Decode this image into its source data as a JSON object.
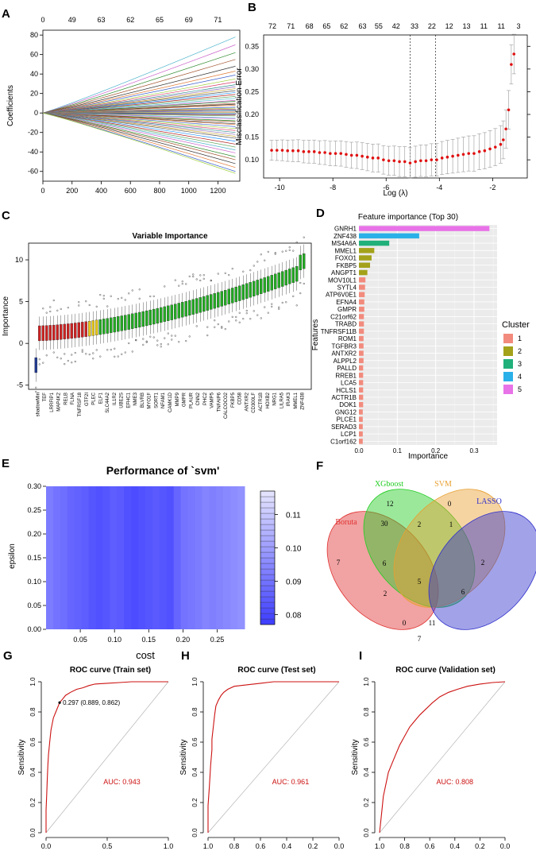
{
  "panel_labels": [
    "A",
    "B",
    "C",
    "D",
    "E",
    "F",
    "G",
    "H",
    "I"
  ],
  "chart_data": [
    {
      "id": "A",
      "type": "line",
      "xlabel": "",
      "ylabel": "Coefficients",
      "xlim": [
        0,
        1350
      ],
      "ylim": [
        -70,
        85
      ],
      "x_ticks": [
        0,
        200,
        400,
        600,
        800,
        1000,
        1200
      ],
      "y_ticks": [
        -60,
        -40,
        -20,
        0,
        20,
        40,
        60,
        80
      ],
      "top_ticks": [
        {
          "x": 0,
          "label": "0"
        },
        {
          "x": 200,
          "label": "49"
        },
        {
          "x": 400,
          "label": "63"
        },
        {
          "x": 600,
          "label": "62"
        },
        {
          "x": 800,
          "label": "65"
        },
        {
          "x": 1000,
          "label": "69"
        },
        {
          "x": 1200,
          "label": "71"
        }
      ],
      "series_end_values": [
        78,
        70,
        62,
        55,
        48,
        43,
        39,
        35,
        32,
        29,
        27,
        25,
        23,
        21,
        19,
        17,
        15,
        13,
        12,
        10,
        9,
        8,
        6,
        5,
        4,
        3,
        2,
        1,
        0,
        -1,
        -2,
        -3,
        -5,
        -6,
        -8,
        -9,
        -11,
        -12,
        -14,
        -16,
        -18,
        -20,
        -22,
        -24,
        -26,
        -29,
        -32,
        -35,
        -38,
        -41,
        -45,
        -48,
        -52,
        -56,
        -60,
        -62
      ],
      "series_colors": [
        "#4db3cc",
        "#cc66cc",
        "#2d8a2d",
        "#a0522d",
        "#333333",
        "#e07b39",
        "#3a5fcd",
        "#9acd32",
        "#d63a6a",
        "#2e8b8b",
        "#8b6bb8",
        "#c7a228",
        "#555555",
        "#1e90ff",
        "#b22222",
        "#66aa66"
      ]
    },
    {
      "id": "B",
      "type": "scatter",
      "xlabel": "Log (λ)",
      "ylabel": "Misclassification Error",
      "xlim": [
        -10.6,
        -0.7
      ],
      "ylim": [
        0.06,
        0.375
      ],
      "x_ticks": [
        -10,
        -8,
        -6,
        -4,
        -2
      ],
      "y_ticks": [
        0.1,
        0.15,
        0.2,
        0.25,
        0.3,
        0.35
      ],
      "top_ticks": [
        {
          "x": -10.3,
          "label": "72"
        },
        {
          "x": -9.5,
          "label": "71"
        },
        {
          "x": -8.7,
          "label": "68"
        },
        {
          "x": -7.95,
          "label": "65"
        },
        {
          "x": -7.2,
          "label": "62"
        },
        {
          "x": -6.4,
          "label": "63"
        },
        {
          "x": -5.7,
          "label": "55"
        },
        {
          "x": -4.95,
          "label": "42"
        },
        {
          "x": -4.15,
          "label": "33"
        },
        {
          "x": -3.4,
          "label": "22"
        },
        {
          "x": -2.65,
          "label": "12"
        },
        {
          "x": -1.9,
          "label": "13"
        },
        {
          "x": -1.15,
          "label": "11"
        },
        {
          "x": -0.4,
          "label": "11"
        },
        {
          "x": 0.35,
          "label": "3"
        }
      ],
      "vlines": [
        -5.1,
        -4.15
      ],
      "x": [
        -10.3,
        -10.1,
        -9.9,
        -9.7,
        -9.5,
        -9.3,
        -9.1,
        -8.9,
        -8.7,
        -8.5,
        -8.3,
        -8.1,
        -7.9,
        -7.7,
        -7.5,
        -7.3,
        -7.1,
        -6.9,
        -6.7,
        -6.5,
        -6.3,
        -6.1,
        -5.9,
        -5.7,
        -5.5,
        -5.3,
        -5.1,
        -4.9,
        -4.7,
        -4.5,
        -4.3,
        -4.1,
        -3.9,
        -3.7,
        -3.5,
        -3.3,
        -3.1,
        -2.9,
        -2.7,
        -2.5,
        -2.3,
        -2.1,
        -1.9,
        -1.7,
        -1.6,
        -1.5,
        -1.4,
        -1.3,
        -1.2
      ],
      "y": [
        0.121,
        0.121,
        0.121,
        0.12,
        0.12,
        0.12,
        0.118,
        0.118,
        0.118,
        0.116,
        0.116,
        0.114,
        0.114,
        0.114,
        0.112,
        0.11,
        0.11,
        0.108,
        0.106,
        0.104,
        0.104,
        0.1,
        0.098,
        0.098,
        0.096,
        0.096,
        0.093,
        0.096,
        0.098,
        0.098,
        0.1,
        0.1,
        0.104,
        0.106,
        0.108,
        0.11,
        0.112,
        0.114,
        0.114,
        0.118,
        0.12,
        0.124,
        0.128,
        0.134,
        0.144,
        0.168,
        0.21,
        0.31,
        0.333
      ],
      "error": 0.022
    },
    {
      "id": "C",
      "type": "box",
      "title": "Variable Importance",
      "xlabel": "",
      "ylabel": "Importance",
      "ylim": [
        -5.5,
        12
      ],
      "y_ticks": [
        -5,
        0,
        5,
        10
      ],
      "n_features": 76,
      "labels": [
        "shadowMin",
        "TEF",
        "LRRFIP1",
        "MAP4K2",
        "RELB",
        "FLNA",
        "TNFRSF18",
        "GTF2I",
        "PLEC",
        "ELF1",
        "SLC44A2",
        "IL1R2",
        "UBE2S",
        "EFHC1",
        "NME3",
        "BLVRB",
        "MYO1F",
        "SORT1",
        "NFAM1",
        "CAMK1D",
        "MMP9",
        "GMPR",
        "PLAUR",
        "CNN2",
        "PHC2",
        "VAMP5",
        "TNFAIP6",
        "CALCOCO2",
        "FKBP5",
        "CD58",
        "ANTXR2",
        "CD300LF",
        "ACTR1B",
        "HOXB2",
        "NRG1",
        "LILRA5",
        "IRAK3",
        "MMEL1",
        "ZNF438"
      ],
      "colors": {
        "shadow_min": "#1f3a93",
        "rejected": "#cc2222",
        "tentative": "#e6c619",
        "confirmed": "#22aa22"
      }
    },
    {
      "id": "D",
      "type": "bar",
      "title": "Feature importance (Top 30)",
      "xlabel": "Importance",
      "ylabel": "Features",
      "xlim": [
        0,
        0.36
      ],
      "x_ticks": [
        0.0,
        0.1,
        0.2,
        0.3
      ],
      "x_tick_labels": [
        "0.0",
        "0.1",
        "0.2",
        "0.3"
      ],
      "categories": [
        "GNRH1",
        "ZNF438",
        "MS4A6A",
        "MMEL1",
        "FOXO1",
        "FKBP5",
        "ANGPT1",
        "MOV10L1",
        "SYTL4",
        "ATP6V0E1",
        "EFNA4",
        "GMPR",
        "C21orf62",
        "TRABD",
        "TNFRSF11B",
        "ROM1",
        "TGFBR3",
        "ANTXR2",
        "ALPPL2",
        "PALLD",
        "RREB1",
        "LCA5",
        "HCLS1",
        "ACTR1B",
        "DOK1",
        "GNG12",
        "PLCE1",
        "SERAD3",
        "LCP1",
        "C1orf162"
      ],
      "values": [
        0.34,
        0.157,
        0.079,
        0.04,
        0.033,
        0.029,
        0.022,
        0.017,
        0.016,
        0.015,
        0.014,
        0.014,
        0.013,
        0.013,
        0.013,
        0.012,
        0.012,
        0.012,
        0.012,
        0.011,
        0.011,
        0.011,
        0.011,
        0.011,
        0.011,
        0.01,
        0.01,
        0.01,
        0.01,
        0.01
      ],
      "clusters": [
        5,
        4,
        3,
        2,
        2,
        2,
        2,
        1,
        1,
        1,
        1,
        1,
        1,
        1,
        1,
        1,
        1,
        1,
        1,
        1,
        1,
        1,
        1,
        1,
        1,
        1,
        1,
        1,
        1,
        1
      ],
      "legend_title": "Cluster",
      "legend": [
        {
          "label": "1",
          "color": "#f28b7d"
        },
        {
          "label": "2",
          "color": "#a3a21a"
        },
        {
          "label": "3",
          "color": "#20b07a"
        },
        {
          "label": "4",
          "color": "#2ab0e8"
        },
        {
          "label": "5",
          "color": "#e872e8"
        }
      ]
    },
    {
      "id": "E",
      "type": "heatmap",
      "title": "Performance of `svm'",
      "xlabel": "cost",
      "ylabel": "epsilon",
      "xlim": [
        0.0,
        0.29
      ],
      "ylim": [
        0.0,
        0.3
      ],
      "x_ticks": [
        0.05,
        0.1,
        0.15,
        0.2,
        0.25
      ],
      "x_tick_labels": [
        "0.05",
        "0.10",
        "0.15",
        "0.20",
        "0.25"
      ],
      "y_ticks": [
        0.0,
        0.05,
        0.1,
        0.15,
        0.2,
        0.25,
        0.3
      ],
      "y_tick_labels": [
        "0.00",
        "0.05",
        "0.10",
        "0.15",
        "0.20",
        "0.25",
        "0.30"
      ],
      "colorbar_ticks": [
        0.08,
        0.09,
        0.1,
        0.11
      ],
      "colorbar_range": [
        0.077,
        0.117
      ],
      "column_values": [
        0.092,
        0.09,
        0.089,
        0.087,
        0.086,
        0.085,
        0.083,
        0.082,
        0.083,
        0.085,
        0.084,
        0.082,
        0.081,
        0.082,
        0.083,
        0.084,
        0.083,
        0.082,
        0.087,
        0.09,
        0.091,
        0.092,
        0.094,
        0.093,
        0.094,
        0.095,
        0.096,
        0.097
      ]
    },
    {
      "id": "F",
      "type": "venn",
      "sets": [
        {
          "name": "Boruta",
          "color": "#e03030"
        },
        {
          "name": "XGboost",
          "color": "#22cc22"
        },
        {
          "name": "SVM",
          "color": "#e8a030"
        },
        {
          "name": "LASSO",
          "color": "#3030cc"
        }
      ],
      "regions": [
        "12",
        "0",
        "7",
        "30",
        "2",
        "1",
        "2",
        "6",
        "6",
        "5",
        "2",
        "0",
        "11",
        "7"
      ]
    },
    {
      "id": "G",
      "type": "line",
      "title": "ROC curve (Train set)",
      "xlabel": "",
      "ylabel": "Sensitivity",
      "x_ticks": [
        0.0,
        0.5,
        1.0
      ],
      "x_tick_labels": [
        "0.0",
        "0.5",
        "1.0"
      ],
      "y_ticks": [
        0.0,
        0.2,
        0.4,
        0.6,
        0.8,
        1.0
      ],
      "y_tick_labels": [
        "0.0",
        "0.2",
        "0.4",
        "0.6",
        "0.8",
        "1.0"
      ],
      "auc_label": "AUC: 0.943",
      "threshold_label": "0.297 (0.889, 0.862)",
      "threshold_point": [
        0.111,
        0.862
      ],
      "fpr": [
        0,
        0,
        0.005,
        0.01,
        0.015,
        0.02,
        0.03,
        0.04,
        0.05,
        0.06,
        0.08,
        0.1,
        0.111,
        0.13,
        0.16,
        0.2,
        0.25,
        0.3,
        0.35,
        0.4,
        0.5,
        0.6,
        0.7,
        0.8,
        0.9,
        1.0
      ],
      "tpr": [
        0,
        0.15,
        0.25,
        0.35,
        0.45,
        0.52,
        0.6,
        0.68,
        0.72,
        0.76,
        0.8,
        0.84,
        0.862,
        0.88,
        0.91,
        0.93,
        0.95,
        0.96,
        0.975,
        0.985,
        0.99,
        0.995,
        1.0,
        1.0,
        1.0,
        1.0
      ]
    },
    {
      "id": "H",
      "type": "line",
      "title": "ROC curve (Test set)",
      "xlabel": "",
      "ylabel": "Sensitivity",
      "x_ticks": [
        1.0,
        0.8,
        0.6,
        0.4,
        0.2,
        0.0
      ],
      "x_tick_labels": [
        "1.0",
        "0.8",
        "0.6",
        "0.4",
        "0.2",
        "0.0"
      ],
      "y_ticks": [
        0.0,
        0.2,
        0.4,
        0.6,
        0.8,
        1.0
      ],
      "y_tick_labels": [
        "0.0",
        "0.2",
        "0.4",
        "0.6",
        "0.8",
        "1.0"
      ],
      "auc_label": "AUC: 0.961",
      "fpr": [
        0,
        0,
        0.01,
        0.02,
        0.03,
        0.03,
        0.04,
        0.05,
        0.06,
        0.08,
        0.1,
        0.12,
        0.15,
        0.2,
        0.3,
        0.4,
        0.5,
        0.6,
        0.8,
        1.0
      ],
      "tpr": [
        0,
        0.18,
        0.3,
        0.45,
        0.55,
        0.62,
        0.7,
        0.78,
        0.84,
        0.88,
        0.91,
        0.93,
        0.95,
        0.97,
        0.98,
        0.99,
        1.0,
        1.0,
        1.0,
        1.0
      ]
    },
    {
      "id": "I",
      "type": "line",
      "title": "ROC curve (Validation set)",
      "xlabel": "",
      "ylabel": "Sensitivity",
      "x_ticks": [
        1.0,
        0.8,
        0.6,
        0.4,
        0.2,
        0.0
      ],
      "x_tick_labels": [
        "1.0",
        "0.8",
        "0.6",
        "0.4",
        "0.2",
        "0.0"
      ],
      "y_ticks": [
        0.0,
        0.2,
        0.4,
        0.6,
        0.8,
        1.0
      ],
      "y_tick_labels": [
        "0.0",
        "0.2",
        "0.4",
        "0.6",
        "0.8",
        "1.0"
      ],
      "auc_label": "AUC: 0.808",
      "fpr": [
        0,
        0.01,
        0.02,
        0.03,
        0.05,
        0.07,
        0.1,
        0.13,
        0.16,
        0.2,
        0.24,
        0.28,
        0.32,
        0.37,
        0.42,
        0.48,
        0.55,
        0.62,
        0.7,
        0.8,
        0.9,
        1.0
      ],
      "tpr": [
        0,
        0.08,
        0.16,
        0.24,
        0.32,
        0.4,
        0.46,
        0.52,
        0.58,
        0.64,
        0.7,
        0.74,
        0.78,
        0.82,
        0.86,
        0.9,
        0.93,
        0.95,
        0.97,
        0.985,
        0.995,
        1.0
      ]
    }
  ]
}
